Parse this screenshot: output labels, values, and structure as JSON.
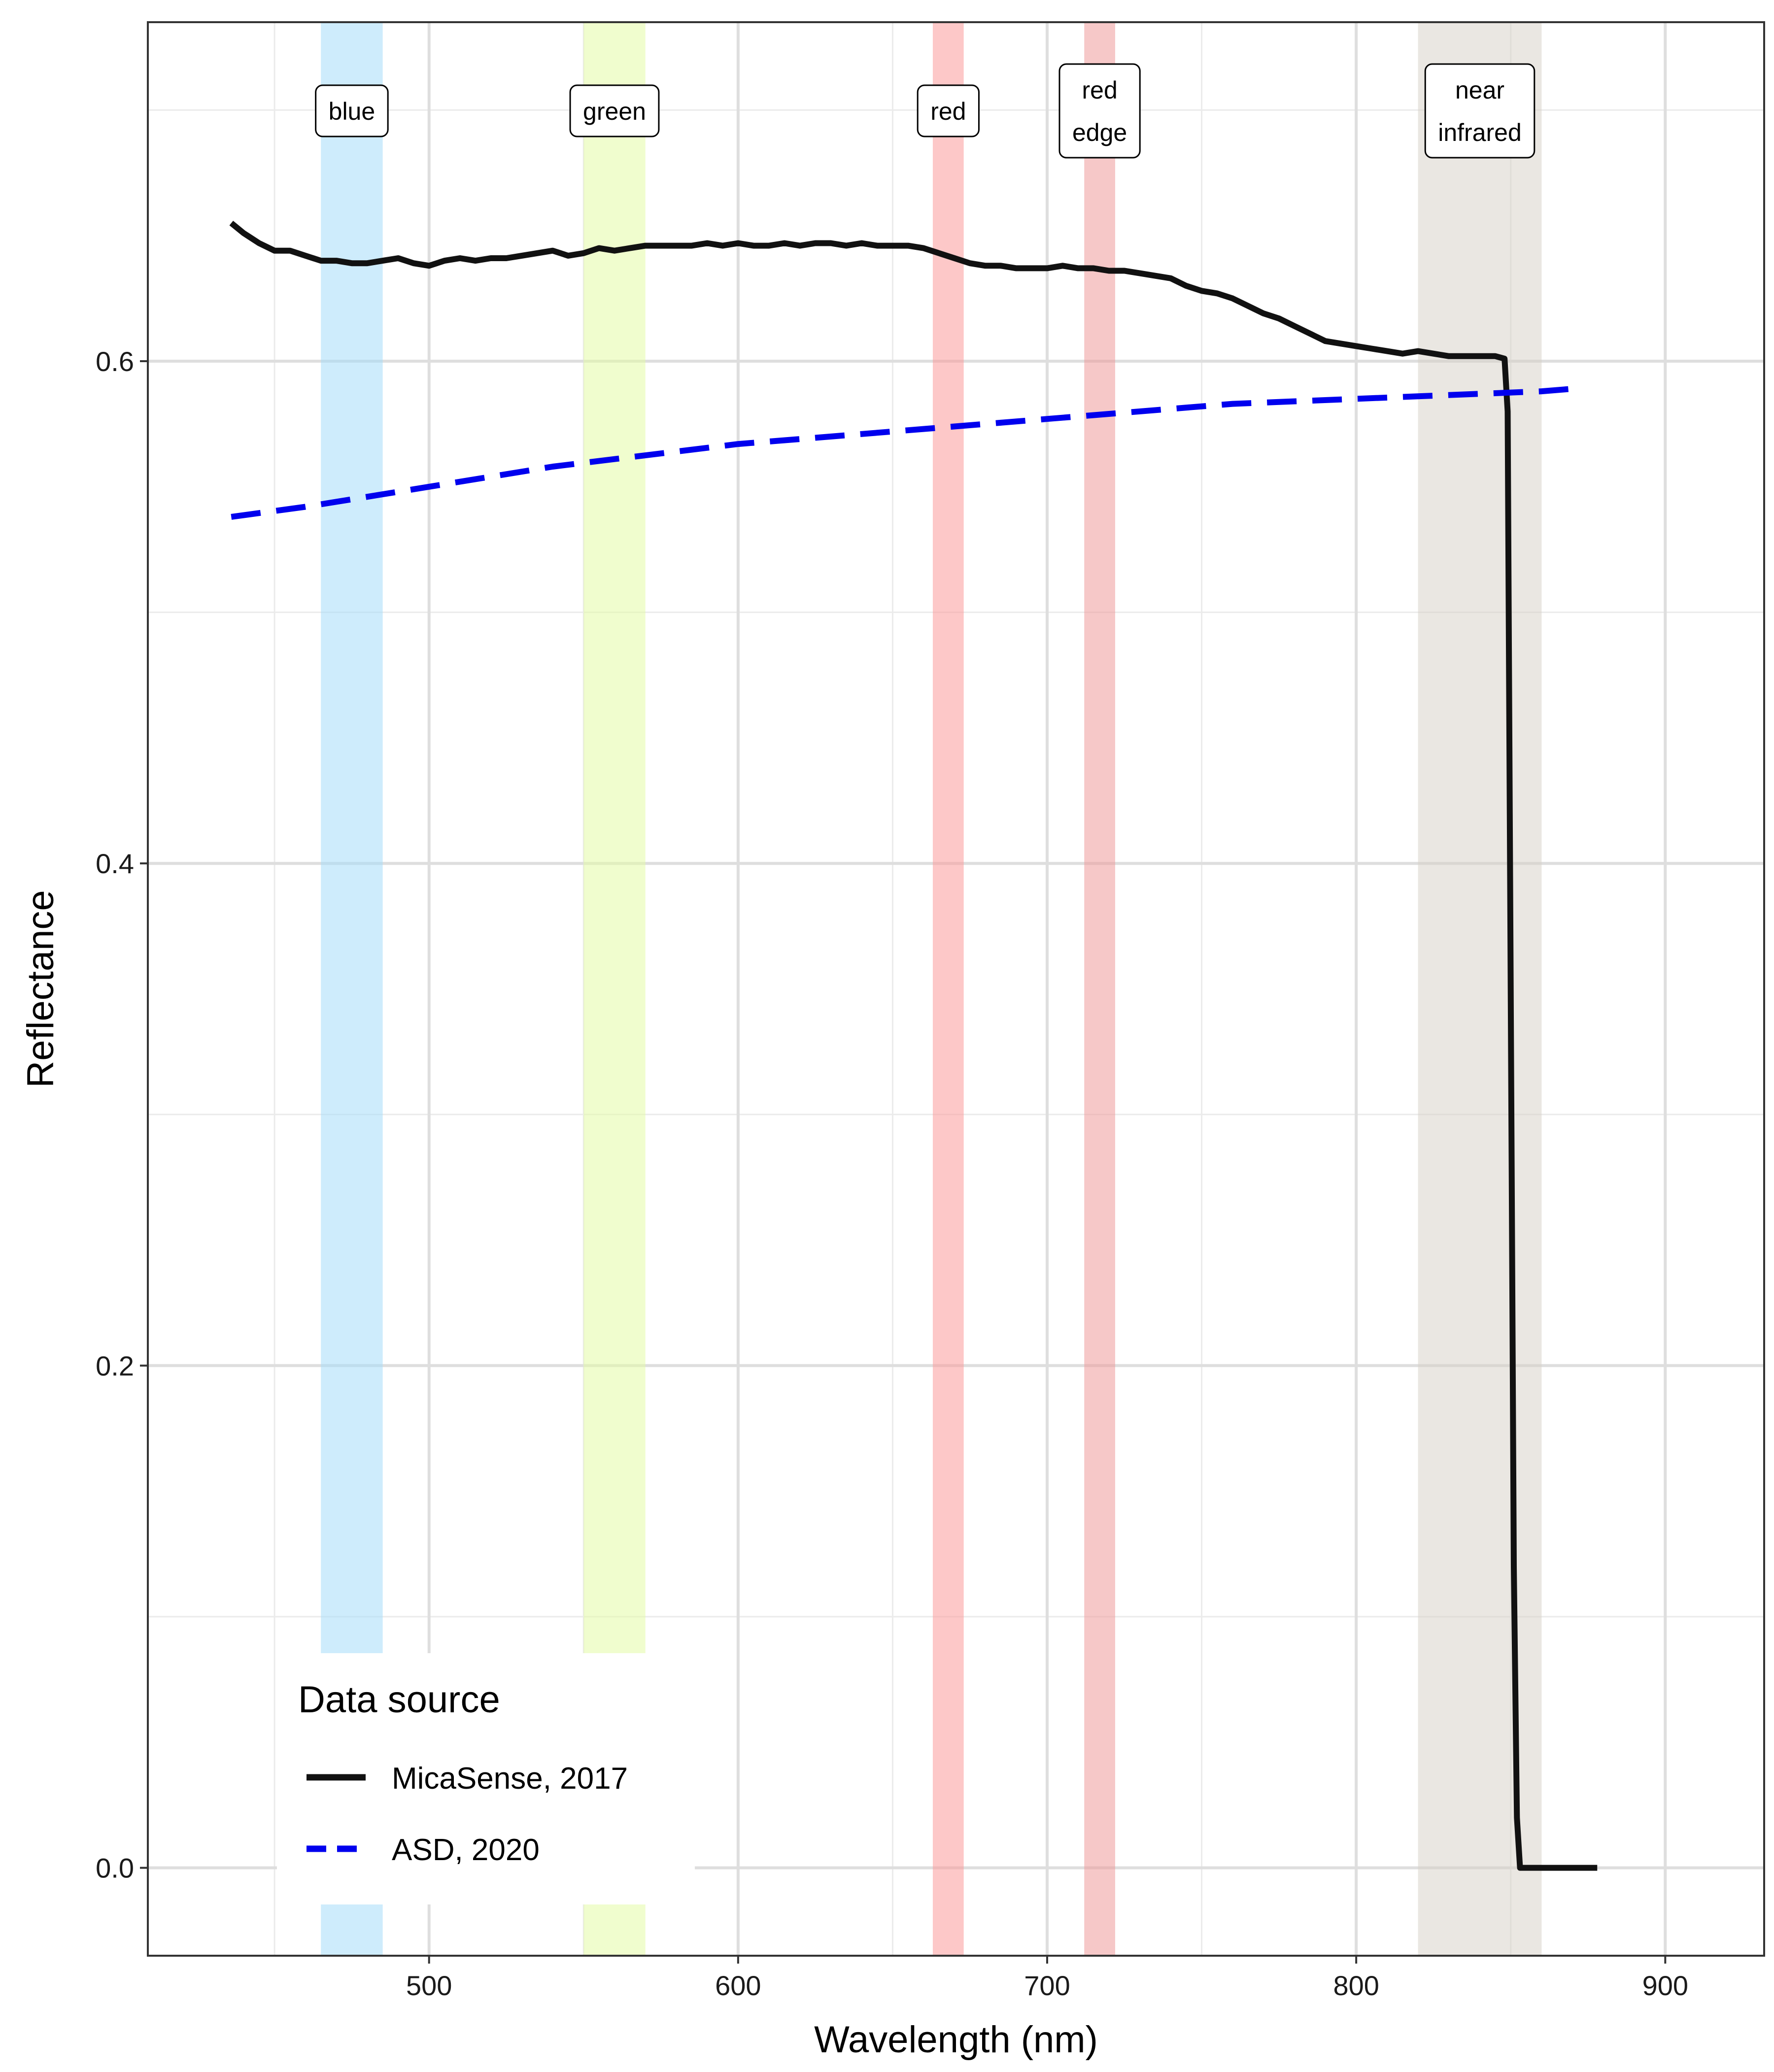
{
  "chart_data": {
    "type": "line",
    "xlabel": "Wavelength (nm)",
    "ylabel": "Reflectance",
    "xlim": [
      409,
      932
    ],
    "ylim": [
      -0.035,
      0.735
    ],
    "x_ticks": [
      500,
      600,
      700,
      800,
      900
    ],
    "x_tick_labels": [
      "500",
      "600",
      "700",
      "800",
      "900"
    ],
    "x_minor_ticks": [
      450,
      550,
      650,
      750,
      850
    ],
    "y_ticks": [
      0.0,
      0.2,
      0.4,
      0.6
    ],
    "y_tick_labels": [
      "0.0",
      "0.2",
      "0.4",
      "0.6"
    ],
    "y_minor_ticks": [
      0.1,
      0.3,
      0.5,
      0.7
    ],
    "grid": true,
    "bands": [
      {
        "lines": [
          "blue"
        ],
        "x_min": 465,
        "x_max": 485,
        "color": "#a5dcf9",
        "opacity": 0.55
      },
      {
        "lines": [
          "green"
        ],
        "x_min": 550,
        "x_max": 570,
        "color": "#e3fba6",
        "opacity": 0.55
      },
      {
        "lines": [
          "red"
        ],
        "x_min": 663,
        "x_max": 673,
        "color": "#fb9a9a",
        "opacity": 0.55
      },
      {
        "lines": [
          "red",
          "edge"
        ],
        "x_min": 712,
        "x_max": 722,
        "color": "#ef9a9a",
        "opacity": 0.55
      },
      {
        "lines": [
          "near",
          "infrared"
        ],
        "x_min": 820,
        "x_max": 860,
        "color": "#d6d0c6",
        "opacity": 0.5
      }
    ],
    "series": [
      {
        "name": "MicaSense, 2017",
        "color": "#111111",
        "dash": "solid",
        "x": [
          436,
          440,
          445,
          450,
          455,
          460,
          465,
          470,
          475,
          480,
          485,
          490,
          495,
          500,
          505,
          510,
          515,
          520,
          525,
          530,
          535,
          540,
          545,
          550,
          555,
          560,
          565,
          570,
          575,
          580,
          585,
          590,
          595,
          600,
          605,
          610,
          615,
          620,
          625,
          630,
          635,
          640,
          645,
          650,
          655,
          660,
          665,
          670,
          675,
          680,
          685,
          690,
          695,
          700,
          705,
          710,
          715,
          720,
          725,
          730,
          735,
          740,
          745,
          750,
          755,
          760,
          765,
          770,
          775,
          780,
          785,
          790,
          795,
          800,
          805,
          810,
          815,
          820,
          825,
          830,
          835,
          840,
          845,
          848,
          849,
          850,
          851,
          852,
          853,
          878
        ],
        "y": [
          0.655,
          0.651,
          0.647,
          0.644,
          0.644,
          0.642,
          0.64,
          0.64,
          0.639,
          0.639,
          0.64,
          0.641,
          0.639,
          0.638,
          0.64,
          0.641,
          0.64,
          0.641,
          0.641,
          0.642,
          0.643,
          0.644,
          0.642,
          0.643,
          0.645,
          0.644,
          0.645,
          0.646,
          0.646,
          0.646,
          0.646,
          0.647,
          0.646,
          0.647,
          0.646,
          0.646,
          0.647,
          0.646,
          0.647,
          0.647,
          0.646,
          0.647,
          0.646,
          0.646,
          0.646,
          0.645,
          0.643,
          0.641,
          0.639,
          0.638,
          0.638,
          0.637,
          0.637,
          0.637,
          0.638,
          0.637,
          0.637,
          0.636,
          0.636,
          0.635,
          0.634,
          0.633,
          0.63,
          0.628,
          0.627,
          0.625,
          0.622,
          0.619,
          0.617,
          0.614,
          0.611,
          0.608,
          0.607,
          0.606,
          0.605,
          0.604,
          0.603,
          0.604,
          0.603,
          0.602,
          0.602,
          0.602,
          0.602,
          0.601,
          0.58,
          0.35,
          0.12,
          0.02,
          0.0,
          0.0
        ]
      },
      {
        "name": "ASD, 2020",
        "color": "#0000ee",
        "dash": "dashed",
        "x": [
          436,
          460,
          480,
          500,
          520,
          540,
          560,
          580,
          600,
          620,
          640,
          660,
          680,
          700,
          720,
          740,
          760,
          780,
          800,
          820,
          840,
          860,
          870
        ],
        "y": [
          0.538,
          0.542,
          0.546,
          0.55,
          0.554,
          0.558,
          0.561,
          0.564,
          0.567,
          0.569,
          0.571,
          0.573,
          0.575,
          0.577,
          0.579,
          0.581,
          0.583,
          0.584,
          0.585,
          0.586,
          0.587,
          0.588,
          0.589
        ]
      }
    ],
    "legend": {
      "title": "Data source",
      "placement": "bottom-left",
      "entries": [
        "MicaSense, 2017",
        "ASD, 2020"
      ]
    }
  }
}
